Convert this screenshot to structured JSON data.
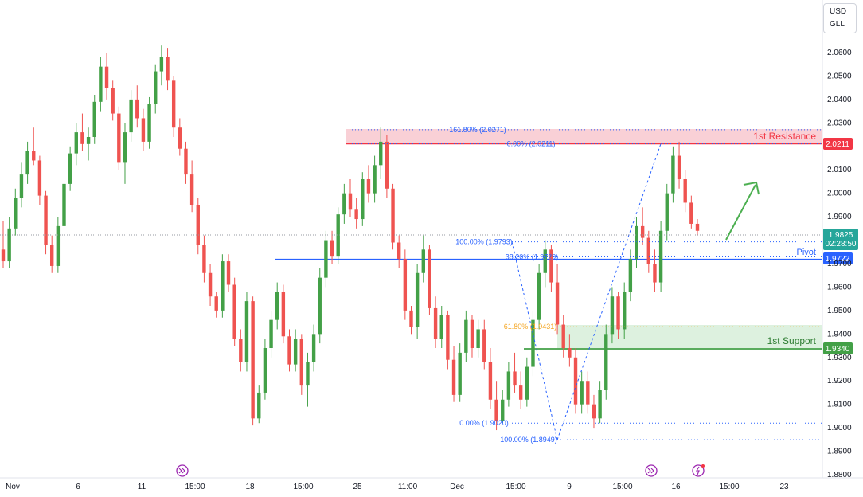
{
  "currency": {
    "base": "USD",
    "quote": "GLL"
  },
  "colors": {
    "up": "#26a69a",
    "up_body": "#43a047",
    "down": "#ef5350",
    "resistance": "#f23645",
    "resistance_zone": "#f8c8cf",
    "support": "#43a047",
    "support_zone": "#d9efdc",
    "pivot": "#2962ff",
    "fib": "#2962ff",
    "fib_gold": "#f5a623",
    "arrow": "#4caf50"
  },
  "labels": {
    "resistance": "1st Resistance",
    "support": "1st Support",
    "pivot": "Pivot"
  },
  "price_tags": {
    "resistance": "2.0211",
    "current": "1.9825",
    "countdown": "02:28:50",
    "pivot": "1.9722",
    "support": "1.9340"
  },
  "fib_labels": [
    {
      "text": "161.80% (2.0271)",
      "value": 2.0271
    },
    {
      "text": "0.00% (2.0211)",
      "value": 2.0211
    },
    {
      "text": "100.00% (1.9793)",
      "value": 1.9793
    },
    {
      "text": "38.20% (1.9729)",
      "value": 1.9729
    },
    {
      "text": "61.80% (1.9431)",
      "value": 1.9431
    },
    {
      "text": "0.00% (1.9020)",
      "value": 1.902
    },
    {
      "text": "100.00% (1.8949)",
      "value": 1.8949
    }
  ],
  "chart_data": {
    "type": "candlestick",
    "title": "",
    "y_ticks": [
      "2.0600",
      "2.0500",
      "2.0400",
      "2.0300",
      "2.0100",
      "2.0000",
      "1.9900",
      "1.9700",
      "1.9600",
      "1.9500",
      "1.9400",
      "1.9300",
      "1.9200",
      "1.9100",
      "1.9000",
      "1.8900",
      "1.8800"
    ],
    "x_ticks": [
      "Nov",
      "6",
      "11",
      "15:00",
      "18",
      "15:00",
      "25",
      "11:00",
      "Dec",
      "15:00",
      "9",
      "15:00",
      "16",
      "15:00",
      "23"
    ],
    "ylim": [
      1.88,
      2.07
    ],
    "levels": {
      "resistance": 2.0211,
      "resistance_zone": [
        2.0211,
        2.0285
      ],
      "pivot": 1.9722,
      "support": 1.934,
      "support_zone": [
        1.934,
        1.9431
      ],
      "current": 1.9825
    },
    "candles_ohlc": [
      [
        1.976,
        1.988,
        1.968,
        1.971
      ],
      [
        1.971,
        1.99,
        1.968,
        1.985
      ],
      [
        1.985,
        2.002,
        1.982,
        1.998
      ],
      [
        1.998,
        2.013,
        1.994,
        2.008
      ],
      [
        2.008,
        2.022,
        2.004,
        2.018
      ],
      [
        2.018,
        2.028,
        2.012,
        2.014
      ],
      [
        2.014,
        2.016,
        1.995,
        1.999
      ],
      [
        1.999,
        2.001,
        1.974,
        1.978
      ],
      [
        1.978,
        1.982,
        1.966,
        1.969
      ],
      [
        1.969,
        1.99,
        1.966,
        1.986
      ],
      [
        1.986,
        2.008,
        1.983,
        2.004
      ],
      [
        2.004,
        2.02,
        2.001,
        2.017
      ],
      [
        2.017,
        2.03,
        2.012,
        2.026
      ],
      [
        2.026,
        2.034,
        2.018,
        2.021
      ],
      [
        2.021,
        2.028,
        2.014,
        2.024
      ],
      [
        2.024,
        2.042,
        2.021,
        2.039
      ],
      [
        2.039,
        2.058,
        2.035,
        2.054
      ],
      [
        2.054,
        2.06,
        2.04,
        2.045
      ],
      [
        2.045,
        2.048,
        2.031,
        2.034
      ],
      [
        2.034,
        2.037,
        2.01,
        2.013
      ],
      [
        2.013,
        2.03,
        2.004,
        2.026
      ],
      [
        2.026,
        2.044,
        2.022,
        2.04
      ],
      [
        2.04,
        2.046,
        2.028,
        2.032
      ],
      [
        2.032,
        2.036,
        2.018,
        2.022
      ],
      [
        2.022,
        2.041,
        2.019,
        2.038
      ],
      [
        2.038,
        2.055,
        2.034,
        2.052
      ],
      [
        2.052,
        2.063,
        2.046,
        2.058
      ],
      [
        2.058,
        2.062,
        2.044,
        2.048
      ],
      [
        2.048,
        2.05,
        2.024,
        2.028
      ],
      [
        2.028,
        2.032,
        2.016,
        2.019
      ],
      [
        2.019,
        2.022,
        2.004,
        2.008
      ],
      [
        2.008,
        2.014,
        1.992,
        1.995
      ],
      [
        1.995,
        1.998,
        1.974,
        1.978
      ],
      [
        1.978,
        1.982,
        1.962,
        1.966
      ],
      [
        1.966,
        1.97,
        1.952,
        1.956
      ],
      [
        1.956,
        1.958,
        1.947,
        1.95
      ],
      [
        1.95,
        1.974,
        1.947,
        1.971
      ],
      [
        1.971,
        1.974,
        1.958,
        1.961
      ],
      [
        1.961,
        1.964,
        1.935,
        1.938
      ],
      [
        1.938,
        1.942,
        1.924,
        1.928
      ],
      [
        1.928,
        1.958,
        1.924,
        1.954
      ],
      [
        1.954,
        1.956,
        1.901,
        1.904
      ],
      [
        1.904,
        1.918,
        1.902,
        1.915
      ],
      [
        1.915,
        1.938,
        1.912,
        1.934
      ],
      [
        1.934,
        1.95,
        1.93,
        1.946
      ],
      [
        1.946,
        1.962,
        1.942,
        1.958
      ],
      [
        1.958,
        1.961,
        1.936,
        1.939
      ],
      [
        1.939,
        1.942,
        1.924,
        1.927
      ],
      [
        1.927,
        1.942,
        1.924,
        1.938
      ],
      [
        1.938,
        1.94,
        1.914,
        1.918
      ],
      [
        1.918,
        1.932,
        1.909,
        1.928
      ],
      [
        1.928,
        1.944,
        1.924,
        1.94
      ],
      [
        1.94,
        1.968,
        1.936,
        1.964
      ],
      [
        1.964,
        1.984,
        1.96,
        1.98
      ],
      [
        1.98,
        1.984,
        1.97,
        1.973
      ],
      [
        1.973,
        1.994,
        1.97,
        1.991
      ],
      [
        1.991,
        2.004,
        1.987,
        2.0
      ],
      [
        2.0,
        2.006,
        1.99,
        1.993
      ],
      [
        1.993,
        1.998,
        1.985,
        1.989
      ],
      [
        1.989,
        2.009,
        1.986,
        2.006
      ],
      [
        2.006,
        2.012,
        1.996,
        2.0
      ],
      [
        2.0,
        2.016,
        1.996,
        2.012
      ],
      [
        2.012,
        2.028,
        2.006,
        2.022
      ],
      [
        2.022,
        2.025,
        1.998,
        2.002
      ],
      [
        2.002,
        2.004,
        1.976,
        1.979
      ],
      [
        1.979,
        1.982,
        1.968,
        1.972
      ],
      [
        1.972,
        1.976,
        1.946,
        1.95
      ],
      [
        1.95,
        1.952,
        1.94,
        1.943
      ],
      [
        1.943,
        1.97,
        1.938,
        1.966
      ],
      [
        1.966,
        1.982,
        1.962,
        1.976
      ],
      [
        1.976,
        1.978,
        1.948,
        1.951
      ],
      [
        1.951,
        1.956,
        1.934,
        1.938
      ],
      [
        1.938,
        1.952,
        1.934,
        1.948
      ],
      [
        1.948,
        1.95,
        1.925,
        1.929
      ],
      [
        1.929,
        1.935,
        1.911,
        1.914
      ],
      [
        1.914,
        1.936,
        1.911,
        1.932
      ],
      [
        1.932,
        1.95,
        1.928,
        1.946
      ],
      [
        1.946,
        1.948,
        1.93,
        1.934
      ],
      [
        1.934,
        1.946,
        1.93,
        1.942
      ],
      [
        1.942,
        1.946,
        1.925,
        1.928
      ],
      [
        1.928,
        1.934,
        1.908,
        1.912
      ],
      [
        1.912,
        1.92,
        1.899,
        1.903
      ],
      [
        1.903,
        1.916,
        1.902,
        1.912
      ],
      [
        1.912,
        1.928,
        1.909,
        1.924
      ],
      [
        1.924,
        1.932,
        1.915,
        1.918
      ],
      [
        1.918,
        1.924,
        1.908,
        1.912
      ],
      [
        1.912,
        1.93,
        1.909,
        1.926
      ],
      [
        1.926,
        1.95,
        1.922,
        1.946
      ],
      [
        1.946,
        1.97,
        1.942,
        1.966
      ],
      [
        1.966,
        1.98,
        1.96,
        1.976
      ],
      [
        1.976,
        1.978,
        1.958,
        1.962
      ],
      [
        1.962,
        1.97,
        1.94,
        1.944
      ],
      [
        1.944,
        1.948,
        1.93,
        1.934
      ],
      [
        1.934,
        1.94,
        1.926,
        1.93
      ],
      [
        1.93,
        1.934,
        1.906,
        1.91
      ],
      [
        1.91,
        1.924,
        1.906,
        1.92
      ],
      [
        1.92,
        1.924,
        1.906,
        1.91
      ],
      [
        1.91,
        1.914,
        1.9,
        1.904
      ],
      [
        1.904,
        1.92,
        1.902,
        1.916
      ],
      [
        1.916,
        1.944,
        1.912,
        1.94
      ],
      [
        1.94,
        1.96,
        1.936,
        1.956
      ],
      [
        1.956,
        1.958,
        1.938,
        1.942
      ],
      [
        1.942,
        1.962,
        1.938,
        1.958
      ],
      [
        1.958,
        1.976,
        1.954,
        1.972
      ],
      [
        1.972,
        1.99,
        1.968,
        1.986
      ],
      [
        1.986,
        1.994,
        1.978,
        1.981
      ],
      [
        1.981,
        1.984,
        1.966,
        1.97
      ],
      [
        1.97,
        1.976,
        1.958,
        1.962
      ],
      [
        1.962,
        1.988,
        1.958,
        1.984
      ],
      [
        1.984,
        2.004,
        1.98,
        2.0
      ],
      [
        2.0,
        2.02,
        1.996,
        2.016
      ],
      [
        2.016,
        2.022,
        2.002,
        2.006
      ],
      [
        2.006,
        2.01,
        1.992,
        1.996
      ],
      [
        1.996,
        1.999,
        1.985,
        1.987
      ],
      [
        1.987,
        1.989,
        1.982,
        1.984
      ]
    ]
  }
}
